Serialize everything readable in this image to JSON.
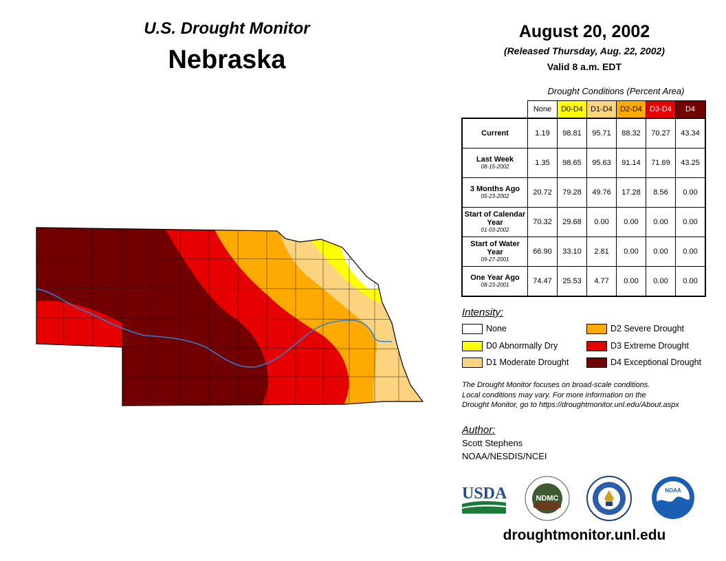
{
  "header": {
    "program_title": "U.S. Drought Monitor",
    "state": "Nebraska",
    "date": "August 20, 2002",
    "released": "(Released Thursday, Aug. 22, 2002)",
    "valid": "Valid 8 a.m. EDT"
  },
  "table": {
    "caption": "Drought Conditions (Percent Area)",
    "columns": [
      {
        "label": "None",
        "color": "#ffffff",
        "text_color": "#000000"
      },
      {
        "label": "D0-D4",
        "color": "#ffff00",
        "text_color": "#000000"
      },
      {
        "label": "D1-D4",
        "color": "#fcd37f",
        "text_color": "#000000"
      },
      {
        "label": "D2-D4",
        "color": "#ffaa00",
        "text_color": "#000000"
      },
      {
        "label": "D3-D4",
        "color": "#e60000",
        "text_color": "#ffffff"
      },
      {
        "label": "D4",
        "color": "#730000",
        "text_color": "#ffffff"
      }
    ],
    "rows": [
      {
        "label": "Current",
        "sublabel": "",
        "values": [
          "1.19",
          "98.81",
          "95.71",
          "88.32",
          "70.27",
          "43.34"
        ]
      },
      {
        "label": "Last Week",
        "sublabel": "08-15-2002",
        "values": [
          "1.35",
          "98.65",
          "95.63",
          "91.14",
          "71.69",
          "43.25"
        ]
      },
      {
        "label": "3 Months Ago",
        "sublabel": "05-23-2002",
        "values": [
          "20.72",
          "79.28",
          "49.76",
          "17.28",
          "8.56",
          "0.00"
        ]
      },
      {
        "label": "Start of Calendar Year",
        "sublabel": "01-03-2002",
        "values": [
          "70.32",
          "29.68",
          "0.00",
          "0.00",
          "0.00",
          "0.00"
        ]
      },
      {
        "label": "Start of Water Year",
        "sublabel": "09-27-2001",
        "values": [
          "66.90",
          "33.10",
          "2.81",
          "0.00",
          "0.00",
          "0.00"
        ]
      },
      {
        "label": "One Year Ago",
        "sublabel": "08-23-2001",
        "values": [
          "74.47",
          "25.53",
          "4.77",
          "0.00",
          "0.00",
          "0.00"
        ]
      }
    ]
  },
  "legend": {
    "title": "Intensity:",
    "items": [
      {
        "label": "None",
        "color": "#ffffff"
      },
      {
        "label": "D0 Abnormally Dry",
        "color": "#ffff00"
      },
      {
        "label": "D1 Moderate Drought",
        "color": "#fcd37f"
      },
      {
        "label": "D2 Severe Drought",
        "color": "#ffaa00"
      },
      {
        "label": "D3 Extreme Drought",
        "color": "#e60000"
      },
      {
        "label": "D4 Exceptional Drought",
        "color": "#730000"
      }
    ]
  },
  "disclaimer": {
    "line1": "The Drought Monitor focuses on broad-scale conditions.",
    "line2": "Local conditions may vary. For more information on the",
    "line3": "Drought Monitor, go to https://droughtmonitor.unl.edu/About.aspx"
  },
  "author": {
    "label": "Author:",
    "name": "Scott Stephens",
    "org": "NOAA/NESDIS/NCEI"
  },
  "logos": {
    "usda": "USDA",
    "ndmc": "NDMC",
    "noaa": "NOAA",
    "doc": "Department of Commerce seal"
  },
  "website": "droughtmonitor.unl.edu"
}
